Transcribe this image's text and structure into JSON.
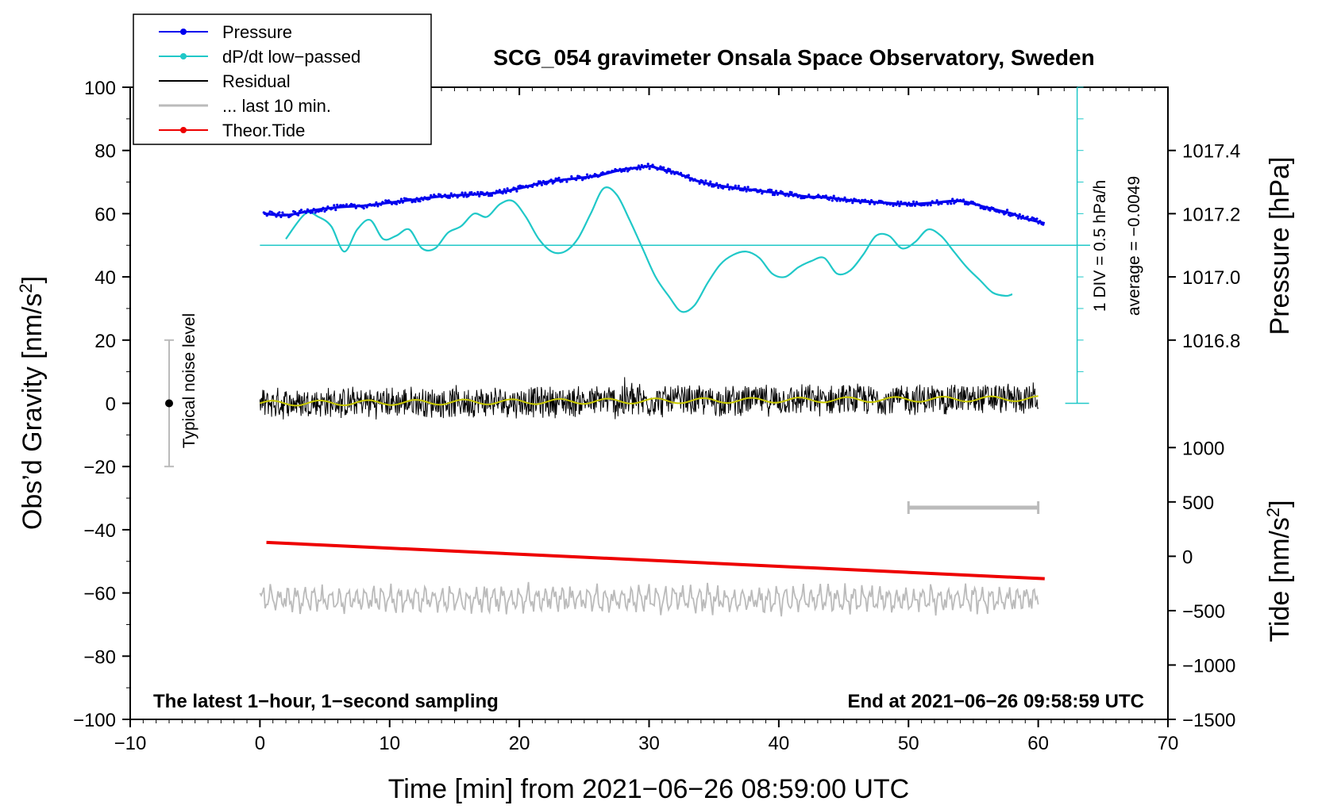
{
  "chart_data": {
    "type": "line",
    "title": "SCG_054 gravimeter Onsala Space Observatory, Sweden",
    "xlabel": "Time [min] from 2021−06−26 08:59:00 UTC",
    "ylabel_left": "Obs’d Gravity [nm/s",
    "ylabel_right_top": "Pressure [hPa]",
    "ylabel_right_bottom": "Tide [nm/s",
    "unit_superscript": "2",
    "unit_close": "]",
    "xlim": [
      -10,
      70
    ],
    "ylim_left": [
      -100,
      100
    ],
    "x_ticks": [
      "−10",
      "0",
      "10",
      "20",
      "30",
      "40",
      "50",
      "60",
      "70"
    ],
    "y_left_ticks": [
      "100",
      "80",
      "60",
      "40",
      "20",
      "0",
      "−20",
      "−40",
      "−60",
      "−80",
      "−100"
    ],
    "pressure_ticks": [
      "1017.4",
      "1017.2",
      "1017.0",
      "1016.8"
    ],
    "tide_ticks": [
      "1000",
      "500",
      "0",
      "−500",
      "−1000",
      "−1500"
    ],
    "legend": [
      {
        "label": "Pressure",
        "color": "#0000ee",
        "marker": true
      },
      {
        "label": "dP/dt low−passed",
        "color": "#20c8c8",
        "marker": true
      },
      {
        "label": "Residual",
        "color": "#000000",
        "marker": false
      },
      {
        "label": "... last 10 min.",
        "color": "#bbbbbb",
        "marker": false
      },
      {
        "label": "Theor.Tide",
        "color": "#ee0000",
        "marker": true
      }
    ],
    "annotations": {
      "noise": "Typical noise level",
      "div": "1 DIV = 0.5 hPa/h",
      "average": "average = −0.0049",
      "bottom_left": "The latest 1−hour, 1−second sampling",
      "bottom_right": "End at 2021−06−26 09:58:59 UTC"
    },
    "series": {
      "pressure": {
        "name": "Pressure",
        "color": "#0000ee",
        "axis": "left",
        "x": [
          0.3,
          2,
          4,
          6,
          8,
          10,
          12,
          14,
          16,
          18,
          20,
          22,
          24,
          26,
          27,
          28,
          29,
          30,
          31,
          32,
          33,
          34,
          36,
          38,
          40,
          42,
          44,
          46,
          48,
          50,
          52,
          54,
          56,
          57,
          58,
          59,
          60.5
        ],
        "y": [
          60,
          59.5,
          61,
          62,
          62.5,
          63.5,
          64.5,
          65.5,
          66,
          66.5,
          68,
          70,
          71,
          72,
          73,
          74,
          74.5,
          75,
          74,
          73,
          71.5,
          70,
          68.5,
          67.5,
          66.5,
          65.5,
          65,
          64,
          63.5,
          63,
          63.5,
          64,
          62,
          61,
          60,
          58.5,
          57
        ]
      },
      "dpdt": {
        "name": "dP/dt low−passed",
        "color": "#20c8c8",
        "axis": "left",
        "x": [
          2.0,
          3.5,
          4.5,
          5.5,
          6.5,
          7.5,
          8.5,
          9.5,
          10.5,
          11.5,
          12.5,
          13.5,
          14.5,
          15.5,
          16.5,
          17.5,
          18.5,
          19.5,
          20.5,
          21.5,
          22.5,
          23.5,
          24.5,
          25.5,
          26.5,
          27.5,
          28.5,
          29.5,
          30.5,
          31.5,
          32.5,
          33.5,
          34.5,
          35.5,
          36.5,
          37.5,
          38.5,
          39.5,
          40.5,
          41.5,
          42.5,
          43.5,
          44.5,
          45.5,
          46.5,
          47.5,
          48.5,
          49.5,
          50.5,
          51.5,
          52.5,
          53.5,
          54.5,
          55.5,
          56.5,
          57.5,
          58.0
        ],
        "y": [
          52,
          60,
          59,
          56,
          48,
          55,
          58,
          52,
          53,
          55,
          49,
          49,
          54,
          56,
          60,
          59,
          63,
          64,
          59,
          52,
          48,
          48,
          52,
          60,
          68,
          66,
          58,
          49,
          40,
          34,
          29,
          31,
          38,
          44,
          47,
          48,
          46,
          41,
          40,
          43,
          45,
          46,
          41,
          42,
          47,
          53,
          53,
          49,
          51,
          55,
          53,
          48,
          43,
          39,
          35,
          34,
          34.5
        ]
      },
      "dpdt_reference": {
        "name": "dP/dt zero line",
        "y": 50,
        "x": [
          0,
          64
        ]
      },
      "residual": {
        "name": "Residual",
        "color": "#000000",
        "axis": "left",
        "x_range": [
          0,
          60
        ],
        "mean": 0,
        "amplitude": 5.5
      },
      "residual_smooth": {
        "name": "Residual smoothed",
        "color": "#c8c800",
        "axis": "left",
        "x_range": [
          0,
          60
        ],
        "mean": 0,
        "amplitude": 1
      },
      "last10": {
        "name": "... last 10 min.",
        "color": "#bbbbbb",
        "axis": "left",
        "x_range": [
          0,
          60
        ],
        "mean": -62,
        "amplitude": 5
      },
      "tide": {
        "name": "Theor.Tide",
        "color": "#ee0000",
        "axis": "left",
        "x": [
          0.5,
          60.5
        ],
        "y": [
          -44,
          -55.5
        ]
      },
      "noise_bar": {
        "x": -7,
        "y_center": 0,
        "y_low": -20,
        "y_high": 20
      },
      "last10_bar": {
        "x_start": 50,
        "x_end": 60,
        "y": -33
      }
    }
  }
}
